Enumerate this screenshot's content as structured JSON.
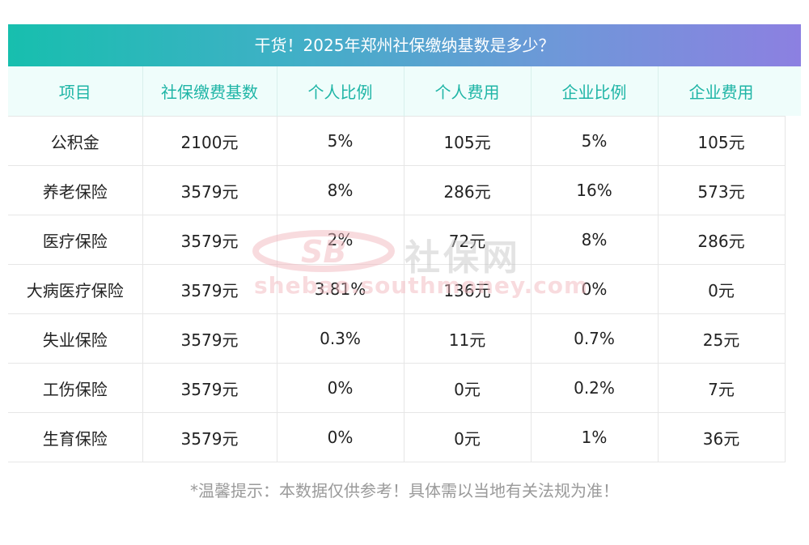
{
  "title": "干货！2025年郑州社保缴纳基数是多少？",
  "table": {
    "headers": [
      "项目",
      "社保缴费基数",
      "个人比例",
      "个人费用",
      "企业比例",
      "企业费用"
    ],
    "rows": [
      [
        "公积金",
        "2100元",
        "5%",
        "105元",
        "5%",
        "105元"
      ],
      [
        "养老保险",
        "3579元",
        "8%",
        "286元",
        "16%",
        "573元"
      ],
      [
        "医疗保险",
        "3579元",
        "2%",
        "72元",
        "8%",
        "286元"
      ],
      [
        "大病医疗保险",
        "3579元",
        "3.81%",
        "136元",
        "0%",
        "0元"
      ],
      [
        "失业保险",
        "3579元",
        "0.3%",
        "11元",
        "0.7%",
        "25元"
      ],
      [
        "工伤保险",
        "3579元",
        "0%",
        "0元",
        "0.2%",
        "7元"
      ],
      [
        "生育保险",
        "3579元",
        "0%",
        "0元",
        "1%",
        "36元"
      ]
    ]
  },
  "note": "*温馨提示：本数据仅供参考！具体需以当地有关法规为准！",
  "watermark": {
    "logo_text": "SB",
    "cn_text": "社保网",
    "url_text": "shebao.southmoney.com"
  },
  "colors": {
    "title_gradient_start": "#17bfae",
    "title_gradient_end": "#8c80e1",
    "header_text": "#1fb5a6",
    "header_bg": "#effdfb",
    "note_text": "#9a9a9a"
  }
}
